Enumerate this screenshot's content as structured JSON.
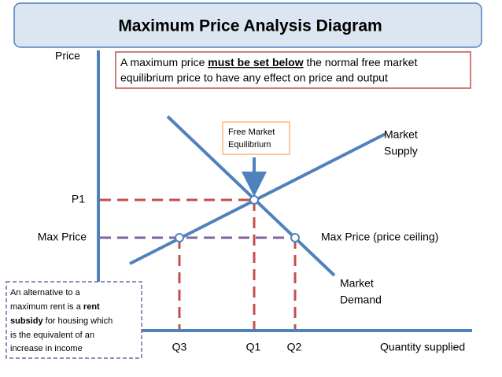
{
  "header": {
    "title": "Maximum Price Analysis Diagram"
  },
  "note": {
    "line1": [
      "A maximum price ",
      "must be set below",
      " the normal free market"
    ],
    "line2": "equilibrium price to have any effect on price and output"
  },
  "axes": {
    "y_label": "Price",
    "x_label": "Quantity supplied"
  },
  "curves": {
    "supply": [
      "Market",
      "Supply"
    ],
    "demand": [
      "Market",
      "Demand"
    ]
  },
  "equilibrium_box": [
    "Free Market",
    "Equilibrium"
  ],
  "price_labels": {
    "p1": "P1",
    "max_price": "Max Price",
    "ceiling": "Max Price (price ceiling)"
  },
  "quantity_labels": {
    "q3": "Q3",
    "q1": "Q1",
    "q2": "Q2"
  },
  "side_note": {
    "lines": [
      [
        "An alternative to a"
      ],
      [
        "maximum rent is a ",
        "rent"
      ],
      [
        "subsidy",
        " for housing which"
      ],
      [
        "is the equivalent of an"
      ],
      [
        "increase in income"
      ]
    ]
  }
}
